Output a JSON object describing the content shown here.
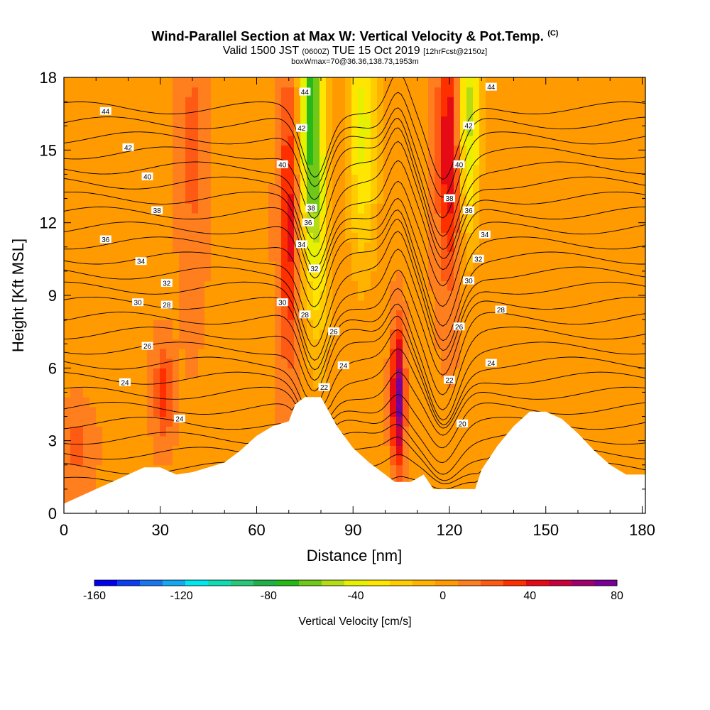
{
  "header": {
    "title": "Wind-Parallel Section at Max W: Vertical Velocity & Pot.Temp.",
    "title_mark": "(C)",
    "valid_prefix": "Valid 1500 JST",
    "valid_zulu": "(0600Z)",
    "valid_date": "TUE 15 Oct 2019",
    "forecast": "[12hrFcst@2150z]",
    "box_info": "boxWmax=70@36.36,138.73,1953m"
  },
  "chart_data": {
    "type": "heatmap",
    "xlabel": "Distance [nm]",
    "ylabel": "Height [Kft MSL]",
    "xlim": [
      0,
      181
    ],
    "ylim": [
      0,
      18
    ],
    "x_ticks": [
      "0",
      "30",
      "60",
      "90",
      "120",
      "150",
      "180"
    ],
    "y_ticks": [
      "0",
      "3",
      "6",
      "9",
      "12",
      "15",
      "18"
    ],
    "colorbar": {
      "title": "Vertical Velocity [cm/s]",
      "range": [
        -160,
        80
      ],
      "tick_labels": [
        "-160",
        "-120",
        "-80",
        "-40",
        "0",
        "40",
        "80"
      ],
      "colors": [
        "#0000ee",
        "#0a3ef0",
        "#1874f0",
        "#14a8f0",
        "#00e8ee",
        "#10dcb4",
        "#28c878",
        "#20b048",
        "#28b818",
        "#70c818",
        "#b4dc14",
        "#e6f000",
        "#ffe600",
        "#ffcc00",
        "#ffb200",
        "#ff9a00",
        "#ff7f1e",
        "#ff5a14",
        "#ff3000",
        "#e60a14",
        "#c8003c",
        "#a0006e",
        "#780096"
      ]
    },
    "terrain": [
      [
        0,
        0.4
      ],
      [
        5,
        0.7
      ],
      [
        10,
        1.0
      ],
      [
        15,
        1.3
      ],
      [
        20,
        1.6
      ],
      [
        25,
        1.9
      ],
      [
        30,
        1.9
      ],
      [
        35,
        1.6
      ],
      [
        40,
        1.7
      ],
      [
        45,
        1.9
      ],
      [
        50,
        2.1
      ],
      [
        55,
        2.6
      ],
      [
        60,
        3.2
      ],
      [
        65,
        3.6
      ],
      [
        70,
        3.8
      ],
      [
        72,
        4.5
      ],
      [
        75,
        4.8
      ],
      [
        80,
        4.8
      ],
      [
        85,
        3.6
      ],
      [
        90,
        2.7
      ],
      [
        95,
        2.1
      ],
      [
        100,
        1.6
      ],
      [
        103,
        1.3
      ],
      [
        108,
        1.3
      ],
      [
        112,
        1.6
      ],
      [
        115,
        1.0
      ],
      [
        120,
        1.0
      ],
      [
        128,
        1.0
      ],
      [
        130,
        1.8
      ],
      [
        135,
        2.8
      ],
      [
        140,
        3.6
      ],
      [
        145,
        4.2
      ],
      [
        150,
        4.2
      ],
      [
        155,
        3.9
      ],
      [
        160,
        3.3
      ],
      [
        165,
        2.6
      ],
      [
        170,
        2.0
      ],
      [
        175,
        1.6
      ],
      [
        181,
        1.6
      ]
    ],
    "features": [
      {
        "name": "downdraft",
        "x": 77,
        "y": 16.5,
        "sx": 2.5,
        "sy": 4.5,
        "w": -75
      },
      {
        "name": "downdraft",
        "x": 93,
        "y": 16.0,
        "sx": 3.5,
        "sy": 4.0,
        "w": -45
      },
      {
        "name": "downdraft",
        "x": 126,
        "y": 16.5,
        "sx": 2.5,
        "sy": 3.5,
        "w": -55
      },
      {
        "name": "downdraft",
        "x": 80,
        "y": 11.0,
        "sx": 2.5,
        "sy": 4.0,
        "w": -25
      },
      {
        "name": "updraft",
        "x": 70,
        "y": 12.0,
        "sx": 2.0,
        "sy": 4.0,
        "w": 38
      },
      {
        "name": "updraft",
        "x": 120,
        "y": 15.0,
        "sx": 2.5,
        "sy": 3.5,
        "w": 45
      },
      {
        "name": "updraft",
        "x": 104,
        "y": 4.8,
        "sx": 1.3,
        "sy": 1.8,
        "w": 75
      },
      {
        "name": "updraft",
        "x": 31,
        "y": 5.0,
        "sx": 2.0,
        "sy": 1.2,
        "w": 30
      },
      {
        "name": "updraft",
        "x": 40,
        "y": 15.0,
        "sx": 2.5,
        "sy": 4.0,
        "w": 15
      },
      {
        "name": "updraft",
        "x": 4,
        "y": 2.7,
        "sx": 3.0,
        "sy": 1.0,
        "w": 18
      }
    ],
    "isentropes": [
      20,
      21,
      22,
      23,
      24,
      25,
      26,
      27,
      28,
      29,
      30,
      31,
      32,
      33,
      34,
      35,
      36,
      37,
      38,
      39,
      40,
      41,
      42,
      43,
      44,
      45
    ],
    "contour_labels": [
      {
        "text": "44",
        "x": 13,
        "y": 16.6
      },
      {
        "text": "42",
        "x": 20,
        "y": 15.1
      },
      {
        "text": "40",
        "x": 26,
        "y": 13.9
      },
      {
        "text": "38",
        "x": 29,
        "y": 12.5
      },
      {
        "text": "36",
        "x": 13,
        "y": 11.3
      },
      {
        "text": "34",
        "x": 24,
        "y": 10.4
      },
      {
        "text": "32",
        "x": 32,
        "y": 9.5
      },
      {
        "text": "30",
        "x": 23,
        "y": 8.7
      },
      {
        "text": "28",
        "x": 32,
        "y": 8.6
      },
      {
        "text": "26",
        "x": 26,
        "y": 6.9
      },
      {
        "text": "24",
        "x": 19,
        "y": 5.4
      },
      {
        "text": "24",
        "x": 36,
        "y": 3.9
      },
      {
        "text": "44",
        "x": 75,
        "y": 17.4
      },
      {
        "text": "42",
        "x": 74,
        "y": 15.9
      },
      {
        "text": "40",
        "x": 68,
        "y": 14.4
      },
      {
        "text": "38",
        "x": 77,
        "y": 12.6
      },
      {
        "text": "36",
        "x": 76,
        "y": 12.0
      },
      {
        "text": "34",
        "x": 74,
        "y": 11.1
      },
      {
        "text": "32",
        "x": 78,
        "y": 10.1
      },
      {
        "text": "30",
        "x": 68,
        "y": 8.7
      },
      {
        "text": "28",
        "x": 75,
        "y": 8.2
      },
      {
        "text": "26",
        "x": 84,
        "y": 7.5
      },
      {
        "text": "24",
        "x": 87,
        "y": 6.1
      },
      {
        "text": "22",
        "x": 81,
        "y": 5.2
      },
      {
        "text": "44",
        "x": 133,
        "y": 17.6
      },
      {
        "text": "42",
        "x": 126,
        "y": 16.0
      },
      {
        "text": "40",
        "x": 123,
        "y": 14.4
      },
      {
        "text": "38",
        "x": 120,
        "y": 13.0
      },
      {
        "text": "36",
        "x": 126,
        "y": 12.5
      },
      {
        "text": "34",
        "x": 131,
        "y": 11.5
      },
      {
        "text": "32",
        "x": 129,
        "y": 10.5
      },
      {
        "text": "30",
        "x": 126,
        "y": 9.6
      },
      {
        "text": "28",
        "x": 136,
        "y": 8.4
      },
      {
        "text": "26",
        "x": 123,
        "y": 7.7
      },
      {
        "text": "24",
        "x": 133,
        "y": 6.2
      },
      {
        "text": "22",
        "x": 120,
        "y": 5.5
      },
      {
        "text": "20",
        "x": 124,
        "y": 3.7
      }
    ]
  }
}
